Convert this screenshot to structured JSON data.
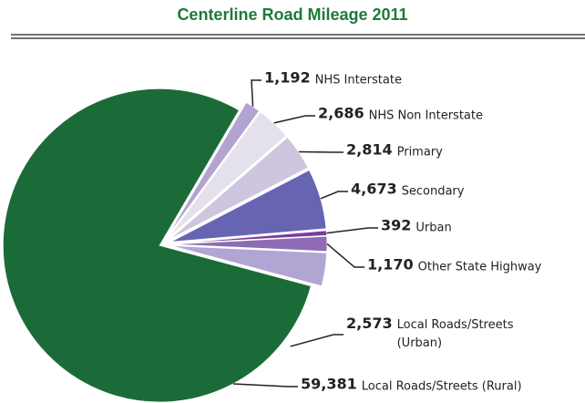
{
  "chart_data": {
    "type": "pie",
    "title": "Centerline Road Mileage 2011",
    "categories": [
      "NHS Interstate",
      "NHS Non Interstate",
      "Primary",
      "Secondary",
      "Urban",
      "Other State Highway",
      "Local Roads/Streets (Urban)",
      "Local Roads/Streets (Rural)"
    ],
    "values": [
      1192,
      2686,
      2814,
      4673,
      392,
      1170,
      2573,
      59381
    ],
    "value_labels": [
      "1,192",
      "2,686",
      "2,814",
      "4,673",
      "392",
      "1,170",
      "2,573",
      "59,381"
    ],
    "colors": [
      "#b2a3d0",
      "#e4e1ec",
      "#cec5df",
      "#6765b2",
      "#7a3d9c",
      "#8e6cb3",
      "#b1a5d3",
      "#1b6b38"
    ]
  }
}
